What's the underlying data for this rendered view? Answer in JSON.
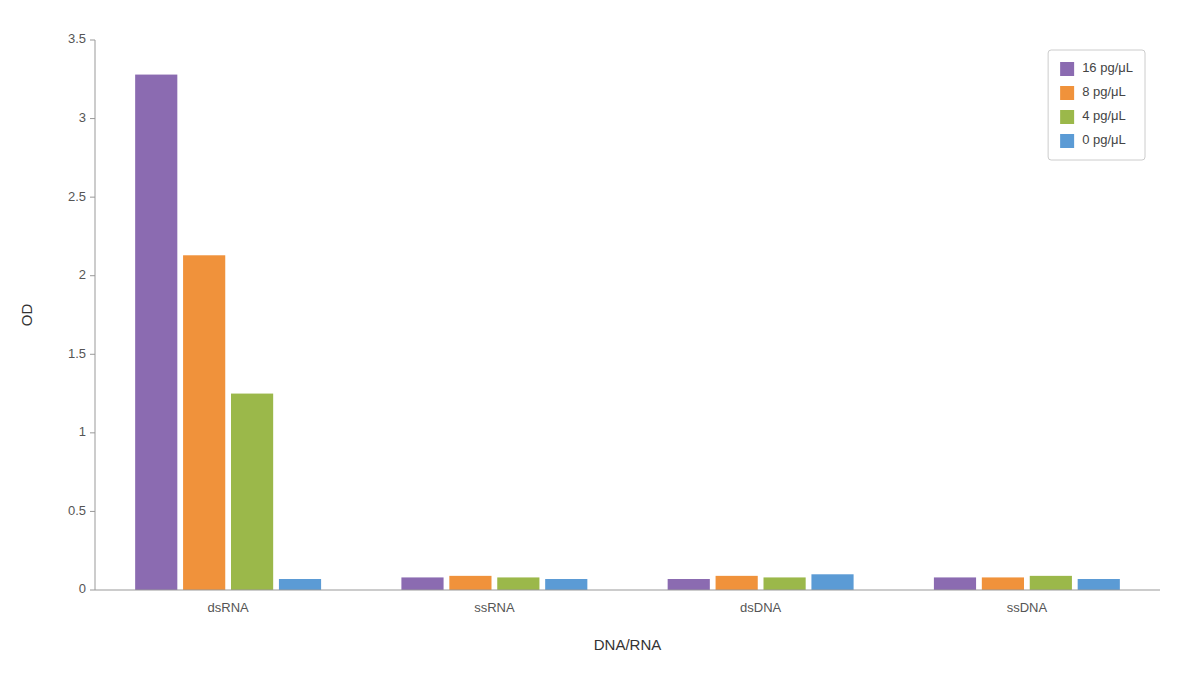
{
  "chart_data": {
    "type": "bar",
    "xlabel": "DNA/RNA",
    "ylabel": "OD",
    "categories": [
      "dsRNA",
      "ssRNA",
      "dsDNA",
      "ssDNA"
    ],
    "series": [
      {
        "name": "16 pg/μL",
        "color": "#8B6BB1",
        "values": [
          3.28,
          0.08,
          0.07,
          0.08
        ]
      },
      {
        "name": "8 pg/μL",
        "color": "#F0923B",
        "values": [
          2.13,
          0.09,
          0.09,
          0.08
        ]
      },
      {
        "name": "4 pg/μL",
        "color": "#9BB84A",
        "values": [
          1.25,
          0.08,
          0.08,
          0.09
        ]
      },
      {
        "name": "0 pg/μL",
        "color": "#5B9BD5",
        "values": [
          0.07,
          0.07,
          0.1,
          0.07
        ]
      }
    ],
    "ylim": [
      0,
      3.5
    ],
    "yticks": [
      0,
      0.5,
      1,
      1.5,
      2,
      2.5,
      3,
      3.5
    ],
    "grid": false,
    "legend": "upper right"
  }
}
